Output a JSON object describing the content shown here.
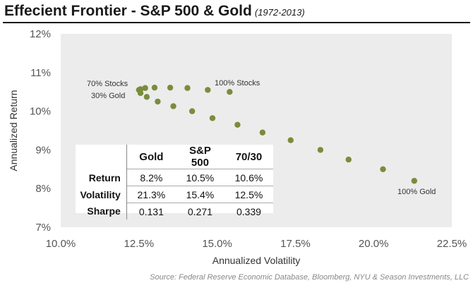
{
  "header": {
    "title": "Effecient Frontier - S&P 500 & Gold",
    "subtitle": "(1972-2013)"
  },
  "chart_data": {
    "type": "scatter",
    "title": "Effecient Frontier - S&P 500 & Gold",
    "subtitle": "(1972-2013)",
    "xlabel": "Annualized Volatility",
    "ylabel": "Annualized Return",
    "xlim": [
      10,
      22.5
    ],
    "ylim": [
      7,
      12
    ],
    "x_ticks": [
      "10.0%",
      "12.5%",
      "15.0%",
      "17.5%",
      "20.0%",
      "22.5%"
    ],
    "y_ticks": [
      "12%",
      "11%",
      "10%",
      "9%",
      "8%",
      "7%"
    ],
    "grid": false,
    "plot_background": "#ececec",
    "point_color": "#7a8c3c",
    "series": [
      {
        "points": [
          {
            "x": 21.3,
            "y": 8.2
          },
          {
            "x": 20.3,
            "y": 8.5
          },
          {
            "x": 19.2,
            "y": 8.75
          },
          {
            "x": 18.3,
            "y": 9.0
          },
          {
            "x": 17.35,
            "y": 9.25
          },
          {
            "x": 16.45,
            "y": 9.45
          },
          {
            "x": 15.65,
            "y": 9.65
          },
          {
            "x": 14.85,
            "y": 9.82
          },
          {
            "x": 14.2,
            "y": 10.0
          },
          {
            "x": 13.6,
            "y": 10.13
          },
          {
            "x": 13.1,
            "y": 10.25
          },
          {
            "x": 12.75,
            "y": 10.37
          },
          {
            "x": 12.55,
            "y": 10.47
          },
          {
            "x": 12.5,
            "y": 10.55
          },
          {
            "x": 12.55,
            "y": 10.57
          },
          {
            "x": 12.7,
            "y": 10.6
          },
          {
            "x": 13.0,
            "y": 10.61
          },
          {
            "x": 13.5,
            "y": 10.61
          },
          {
            "x": 14.05,
            "y": 10.6
          },
          {
            "x": 14.7,
            "y": 10.55
          },
          {
            "x": 15.4,
            "y": 10.5
          }
        ]
      }
    ],
    "annotations": [
      "70% Stocks",
      "30% Gold",
      "100% Stocks",
      "100% Gold"
    ]
  },
  "stats_table": {
    "headers": [
      "",
      "Gold",
      "S&P 500",
      "70/30"
    ],
    "rows": [
      {
        "label": "Return",
        "values": [
          "8.2%",
          "10.5%",
          "10.6%"
        ]
      },
      {
        "label": "Volatility",
        "values": [
          "21.3%",
          "15.4%",
          "12.5%"
        ]
      },
      {
        "label": "Sharpe",
        "values": [
          "0.131",
          "0.271",
          "0.339"
        ]
      }
    ]
  },
  "source": "Source: Federal Reserve Economic Database, Bloomberg, NYU & Season Investments, LLC"
}
